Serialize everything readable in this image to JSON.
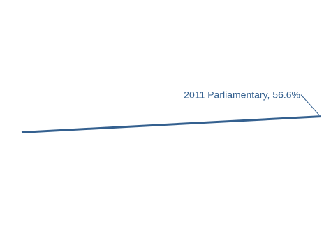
{
  "chart_data": {
    "type": "line",
    "title": "",
    "xlabel": "",
    "ylabel": "",
    "grid": false,
    "legend": "none",
    "series": [
      {
        "color": "#34608f",
        "points": [
          {
            "y": 54.0
          },
          {
            "y": 56.6
          }
        ]
      }
    ],
    "ylim": [
      38,
      75
    ],
    "annotations": [
      {
        "text": "2011 Parliamentary, 56.6%",
        "point_index": 1,
        "color": "#34608f"
      }
    ]
  }
}
